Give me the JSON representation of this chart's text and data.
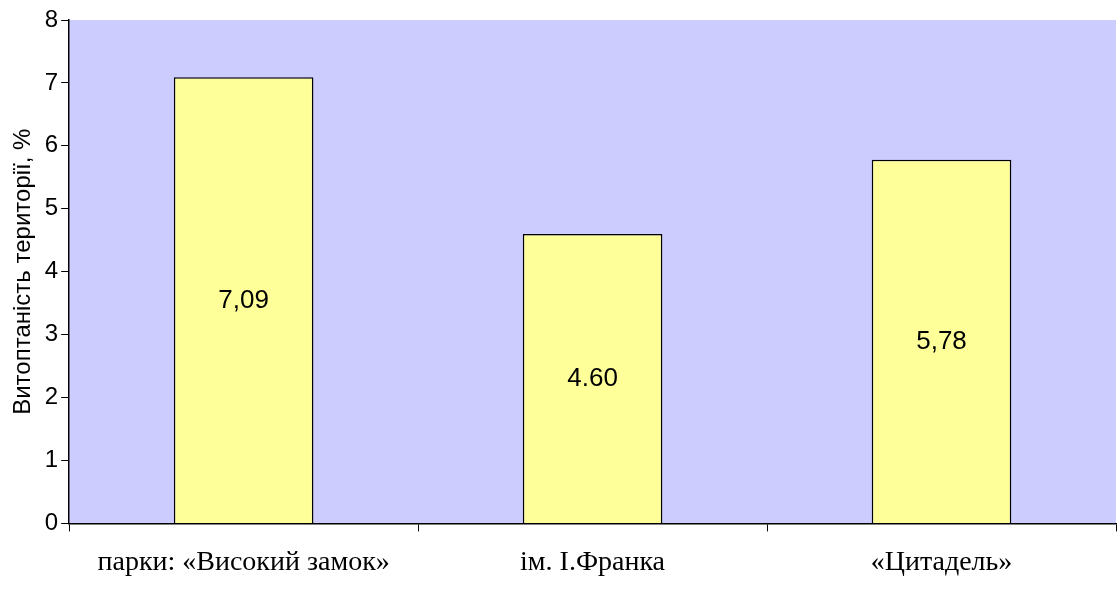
{
  "chart_data": {
    "type": "bar",
    "ylabel": "Витоптаність території, %",
    "categories": [
      "парки: «Високий замок»",
      "ім. І.Франка",
      "«Цитадель»"
    ],
    "values": [
      7.09,
      4.6,
      5.78
    ],
    "color": "#ffff99",
    "value_labels": [
      "7,09",
      "4.60",
      "5,78"
    ],
    "ylim": [
      0,
      8
    ],
    "yticks": [
      0,
      1,
      2,
      3,
      4,
      5,
      6,
      7,
      8
    ],
    "grid": false,
    "legend": false
  }
}
